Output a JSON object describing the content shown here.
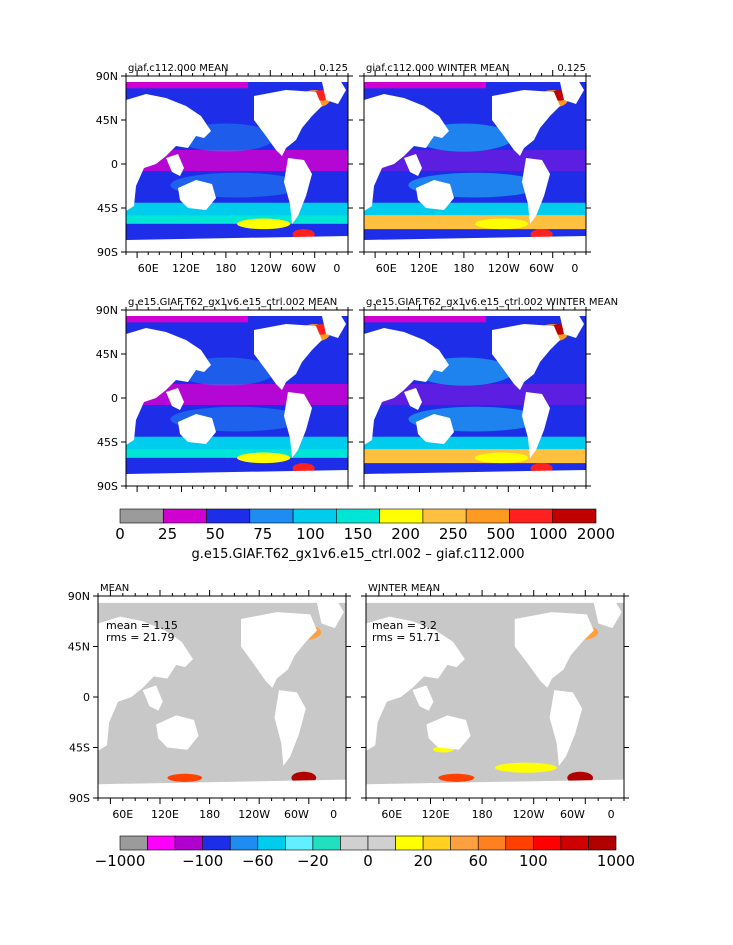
{
  "top_rows": [
    {
      "left": {
        "title": "giaf.c112.000 MEAN",
        "value": "0.125"
      },
      "right": {
        "title": "giaf.c112.000 WINTER MEAN",
        "value": "0.125"
      }
    },
    {
      "left": {
        "title": "g.e15.GIAF.T62_gx1v6.e15_ctrl.002 MEAN",
        "value": ""
      },
      "right": {
        "title": "g.e15.GIAF.T62_gx1v6.e15_ctrl.002 WINTER MEAN",
        "value": ""
      }
    }
  ],
  "diff_panels": [
    {
      "title": "MEAN",
      "mean_label": "mean = 1.15",
      "rms_label": "rms = 21.79"
    },
    {
      "title": "WINTER MEAN",
      "mean_label": "mean = 3.2",
      "rms_label": "rms = 51.71"
    }
  ],
  "lat_labels": [
    "90N",
    "45N",
    "0",
    "45S",
    "90S"
  ],
  "lon_labels": [
    "60E",
    "120E",
    "180",
    "120W",
    "60W",
    "0"
  ],
  "colorbar_top": {
    "labels": [
      "0",
      "25",
      "50",
      "75",
      "100",
      "150",
      "200",
      "250",
      "500",
      "1000",
      "2000"
    ],
    "colors": [
      "#9b9b9b",
      "#d000d0",
      "#1e2ee8",
      "#1e8cf0",
      "#00ccee",
      "#00e6d6",
      "#ffff00",
      "#ffc040",
      "#ff9a20",
      "#ff2020",
      "#c00000"
    ],
    "caption": "g.e15.GIAF.T62_gx1v6.e15_ctrl.002 – giaf.c112.000"
  },
  "colorbar_bottom": {
    "labels": [
      "−1000",
      "−100",
      "−60",
      "−20",
      "0",
      "20",
      "60",
      "100",
      "1000"
    ],
    "colors": [
      "#9b9b9b",
      "#ff00ff",
      "#b000d0",
      "#1e2ee8",
      "#1e8cf0",
      "#00ccee",
      "#60f0ff",
      "#20e0c0",
      "#d0d0d0",
      "#d0d0d0",
      "#ffff00",
      "#ffd020",
      "#ffa040",
      "#ff8020",
      "#ff4000",
      "#ff0000",
      "#d00000",
      "#b00000"
    ]
  },
  "colors": {
    "land": "#ffffff",
    "ocean_diff": "#c8c8c8",
    "ocean_base": "#1e2ee8"
  }
}
